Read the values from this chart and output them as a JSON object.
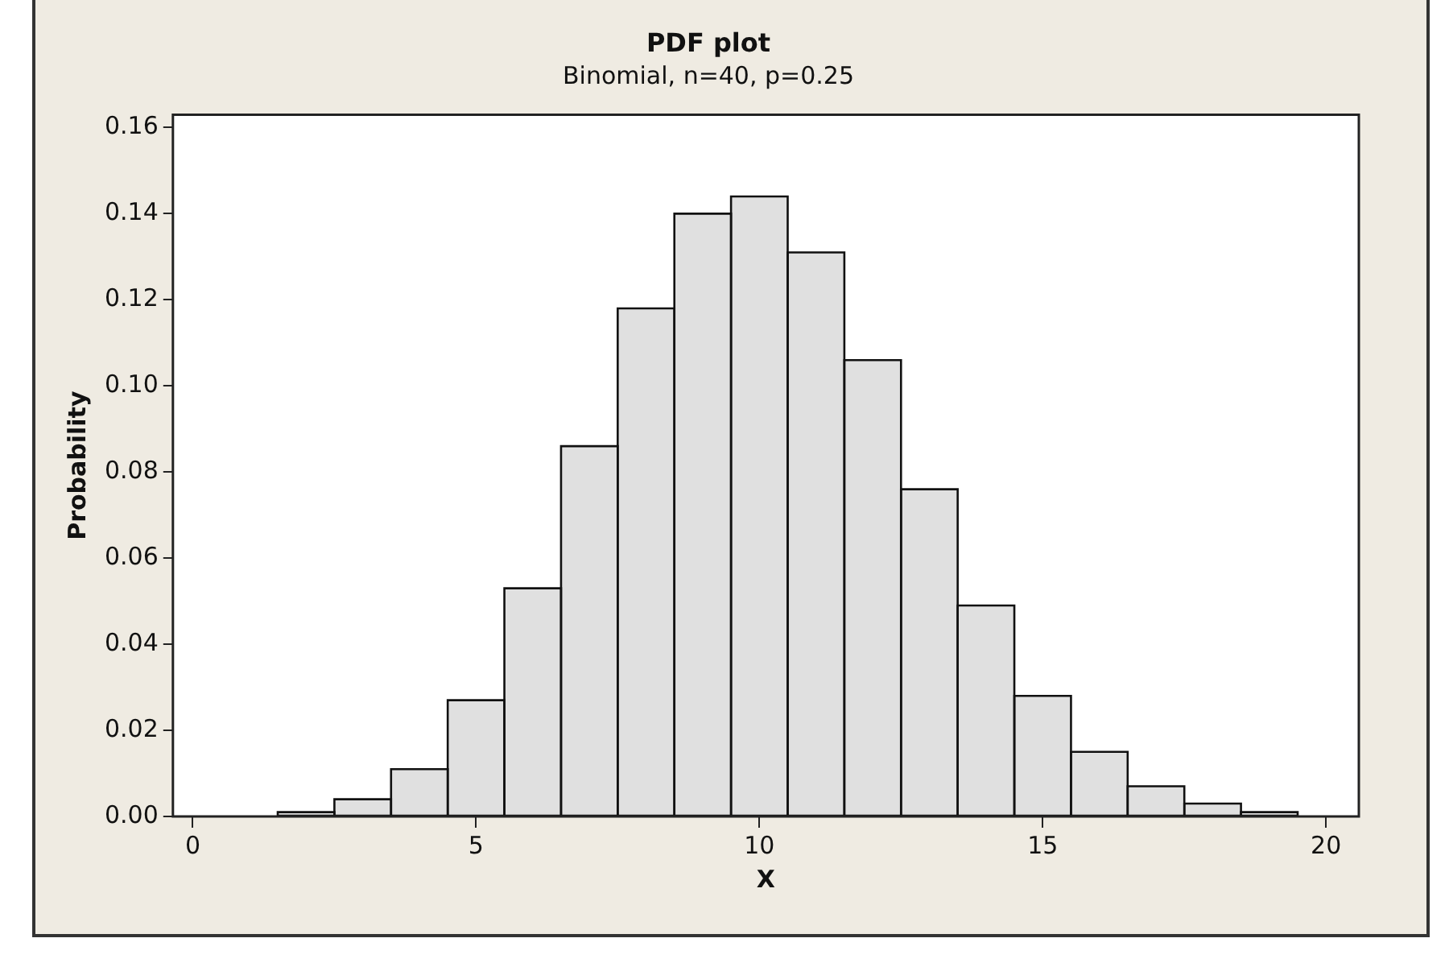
{
  "chart_data": {
    "type": "histogram",
    "title": "PDF plot",
    "subtitle": "Binomial, n=40, p=0.25",
    "xlabel": "X",
    "ylabel": "Probability",
    "bins": [
      1.5,
      2.5,
      3.5,
      4.5,
      5.5,
      6.5,
      7.5,
      8.5,
      9.5,
      10.5,
      11.5,
      12.5,
      13.5,
      14.5,
      15.5,
      16.5,
      17.5,
      18.5,
      19.5
    ],
    "values": [
      0.001,
      0.004,
      0.011,
      0.027,
      0.053,
      0.086,
      0.118,
      0.14,
      0.144,
      0.131,
      0.106,
      0.076,
      0.049,
      0.028,
      0.015,
      0.007,
      0.003,
      0.001
    ],
    "color": "#e0e0e0",
    "xlim": [
      -0.35,
      20.58
    ],
    "xticks": [
      0,
      5,
      10,
      15,
      20
    ],
    "ylim": [
      0,
      0.163
    ],
    "yticks": [
      {
        "value": 0,
        "label": "0.00"
      },
      {
        "value": 0.02,
        "label": "0.02"
      },
      {
        "value": 0.04,
        "label": "0.04"
      },
      {
        "value": 0.06,
        "label": "0.06"
      },
      {
        "value": 0.08,
        "label": "0.08"
      },
      {
        "value": 0.1,
        "label": "0.10"
      },
      {
        "value": 0.12,
        "label": "0.12"
      },
      {
        "value": 0.14,
        "label": "0.14"
      },
      {
        "value": 0.16,
        "label": "0.16"
      }
    ],
    "grid": false,
    "legend": false
  }
}
